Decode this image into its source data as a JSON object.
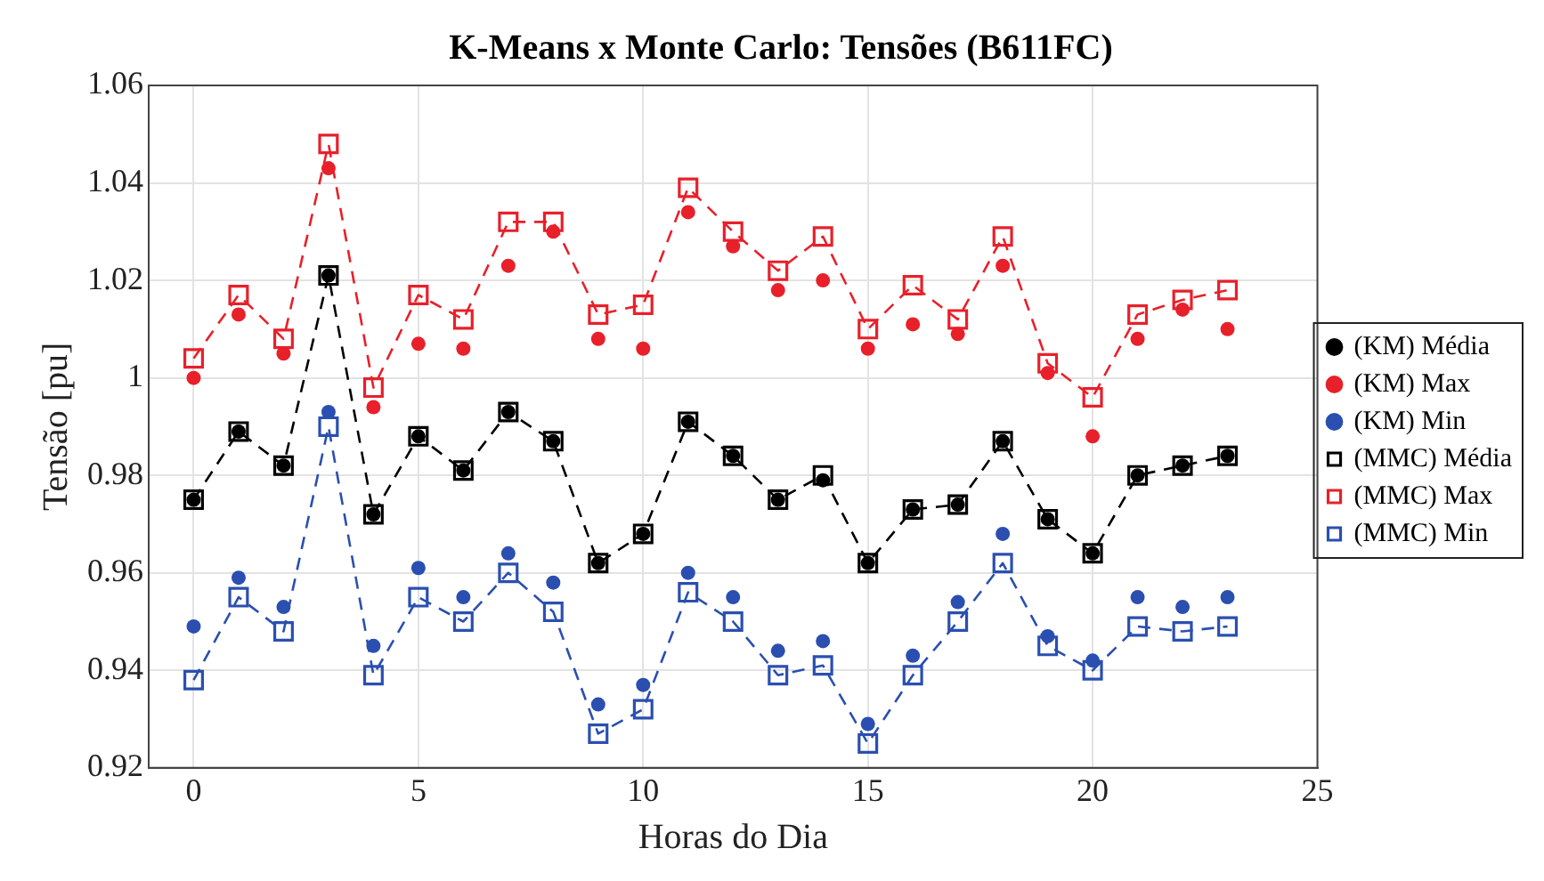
{
  "chart_data": {
    "type": "scatter",
    "title": "K-Means x Monte Carlo: Tensões (B611FC)",
    "xlabel": "Horas do Dia",
    "ylabel": "Tensão [pu]",
    "x": [
      0,
      1,
      2,
      3,
      4,
      5,
      6,
      7,
      8,
      9,
      10,
      11,
      12,
      13,
      14,
      15,
      16,
      17,
      18,
      19,
      20,
      21,
      22,
      23
    ],
    "xlim": [
      -1,
      25
    ],
    "xticks": [
      0,
      5,
      10,
      15,
      20,
      25
    ],
    "ylim": [
      0.92,
      1.06
    ],
    "yticks": [
      0.92,
      0.94,
      0.96,
      0.98,
      1,
      1.02,
      1.04,
      1.06
    ],
    "grid": true,
    "legend": "right",
    "series": [
      {
        "name": "(KM) Média",
        "type": "scatter",
        "marker": "circle",
        "color": "#000000",
        "values": [
          0.975,
          0.989,
          0.982,
          1.021,
          0.972,
          0.988,
          0.981,
          0.993,
          0.987,
          0.962,
          0.968,
          0.991,
          0.984,
          0.975,
          0.979,
          0.962,
          0.973,
          0.974,
          0.987,
          0.971,
          0.964,
          0.98,
          0.982,
          0.984
        ]
      },
      {
        "name": "(KM) Max",
        "type": "scatter",
        "marker": "circle",
        "color": "#e8202a",
        "values": [
          1.0,
          1.013,
          1.005,
          1.043,
          0.994,
          1.007,
          1.006,
          1.023,
          1.03,
          1.008,
          1.006,
          1.034,
          1.027,
          1.018,
          1.02,
          1.006,
          1.011,
          1.009,
          1.023,
          1.001,
          0.988,
          1.008,
          1.014,
          1.01
        ]
      },
      {
        "name": "(KM) Min",
        "type": "scatter",
        "marker": "circle",
        "color": "#2a4fb0",
        "values": [
          0.949,
          0.959,
          0.953,
          0.993,
          0.945,
          0.961,
          0.955,
          0.964,
          0.958,
          0.933,
          0.937,
          0.96,
          0.955,
          0.944,
          0.946,
          0.929,
          0.943,
          0.954,
          0.968,
          0.947,
          0.942,
          0.955,
          0.953,
          0.955
        ]
      },
      {
        "name": "(MMC) Média",
        "type": "line",
        "marker": "square",
        "line_style": "dashed",
        "color": "#000000",
        "values": [
          0.975,
          0.989,
          0.982,
          1.021,
          0.972,
          0.988,
          0.981,
          0.993,
          0.987,
          0.962,
          0.968,
          0.991,
          0.984,
          0.975,
          0.98,
          0.962,
          0.973,
          0.974,
          0.987,
          0.971,
          0.964,
          0.98,
          0.982,
          0.984
        ]
      },
      {
        "name": "(MMC) Max",
        "type": "line",
        "marker": "square",
        "line_style": "dashed",
        "color": "#e8202a",
        "values": [
          1.004,
          1.017,
          1.008,
          1.048,
          0.998,
          1.017,
          1.012,
          1.032,
          1.032,
          1.013,
          1.015,
          1.039,
          1.03,
          1.022,
          1.029,
          1.01,
          1.019,
          1.012,
          1.029,
          1.003,
          0.996,
          1.013,
          1.016,
          1.018
        ]
      },
      {
        "name": "(MMC) Min",
        "type": "line",
        "marker": "square",
        "line_style": "dashed",
        "color": "#2a4fb0",
        "values": [
          0.938,
          0.955,
          0.948,
          0.99,
          0.939,
          0.955,
          0.95,
          0.96,
          0.952,
          0.927,
          0.932,
          0.956,
          0.95,
          0.939,
          0.941,
          0.925,
          0.939,
          0.95,
          0.962,
          0.945,
          0.94,
          0.949,
          0.948,
          0.949
        ]
      }
    ]
  }
}
